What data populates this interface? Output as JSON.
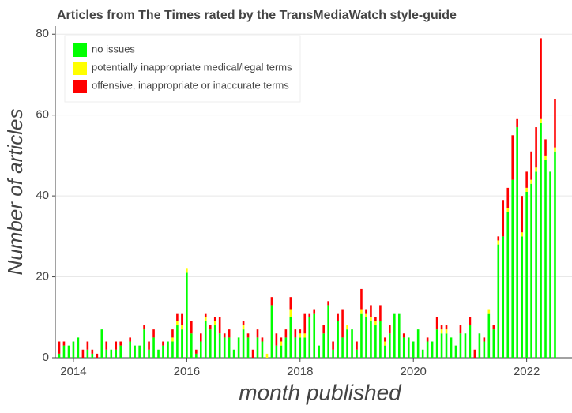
{
  "chart_data": {
    "type": "bar",
    "stacked": true,
    "title": "Articles from The Times rated by the TransMediaWatch style-guide",
    "x_label": "month published",
    "y_label": "Number of articles",
    "x": [
      2013.75,
      2013.833,
      2013.917,
      2014.0,
      2014.083,
      2014.167,
      2014.25,
      2014.333,
      2014.417,
      2014.5,
      2014.583,
      2014.667,
      2014.75,
      2014.833,
      2014.917,
      2015.0,
      2015.083,
      2015.167,
      2015.25,
      2015.333,
      2015.417,
      2015.5,
      2015.583,
      2015.667,
      2015.75,
      2015.833,
      2015.917,
      2016.0,
      2016.083,
      2016.167,
      2016.25,
      2016.333,
      2016.417,
      2016.5,
      2016.583,
      2016.667,
      2016.75,
      2016.833,
      2016.917,
      2017.0,
      2017.083,
      2017.167,
      2017.25,
      2017.333,
      2017.417,
      2017.5,
      2017.583,
      2017.667,
      2017.75,
      2017.833,
      2017.917,
      2018.0,
      2018.083,
      2018.167,
      2018.25,
      2018.333,
      2018.417,
      2018.5,
      2018.583,
      2018.667,
      2018.75,
      2018.833,
      2018.917,
      2019.0,
      2019.083,
      2019.167,
      2019.25,
      2019.333,
      2019.417,
      2019.5,
      2019.583,
      2019.667,
      2019.75,
      2019.833,
      2019.917,
      2020.0,
      2020.083,
      2020.167,
      2020.25,
      2020.333,
      2020.417,
      2020.5,
      2020.583,
      2020.667,
      2020.75,
      2020.833,
      2020.917,
      2021.0,
      2021.083,
      2021.167,
      2021.25,
      2021.333,
      2021.417,
      2021.5,
      2021.583,
      2021.667,
      2021.75,
      2021.833,
      2021.917,
      2022.0,
      2022.083,
      2022.167,
      2022.25,
      2022.333,
      2022.417,
      2022.5
    ],
    "series": [
      {
        "name": "no issues",
        "color": "#00ff00",
        "values": [
          1,
          3,
          3,
          4,
          5,
          0,
          2,
          1,
          0,
          7,
          2,
          2,
          2,
          3,
          0,
          4,
          3,
          3,
          7,
          2,
          5,
          2,
          3,
          4,
          4,
          8,
          7,
          21,
          6,
          1,
          4,
          9,
          7,
          8,
          6,
          5,
          5,
          2,
          5,
          7,
          5,
          0,
          5,
          4,
          0,
          13,
          3,
          3,
          5,
          10,
          5,
          5,
          5,
          10,
          11,
          3,
          6,
          13,
          2,
          9,
          5,
          7,
          7,
          2,
          11,
          10,
          9,
          8,
          9,
          3,
          6,
          11,
          11,
          5,
          5,
          4,
          7,
          2,
          4,
          4,
          7,
          6,
          6,
          5,
          3,
          6,
          6,
          8,
          0,
          6,
          4,
          11,
          7,
          28,
          30,
          36,
          44,
          57,
          30,
          41,
          43,
          46,
          58,
          49,
          46,
          51
        ]
      },
      {
        "name": "potentially inappropriate medical/legal terms",
        "color": "#ffff00",
        "values": [
          0,
          0,
          0,
          0,
          0,
          0,
          0,
          0,
          0,
          0,
          0,
          0,
          0,
          0,
          0,
          0,
          0,
          0,
          0,
          0,
          0,
          0,
          0,
          0,
          1,
          1,
          1,
          1,
          0,
          0,
          0,
          1,
          0,
          1,
          0,
          0,
          0,
          0,
          0,
          1,
          0,
          0,
          0,
          0,
          1,
          0,
          0,
          1,
          0,
          2,
          0,
          1,
          1,
          0,
          0,
          0,
          0,
          0,
          0,
          0,
          0,
          1,
          0,
          0,
          1,
          1,
          1,
          1,
          0,
          1,
          0,
          0,
          0,
          0,
          0,
          0,
          0,
          0,
          0,
          0,
          0,
          1,
          1,
          0,
          0,
          0,
          0,
          0,
          0,
          0,
          0,
          1,
          0,
          1,
          0,
          1,
          0,
          0,
          1,
          1,
          1,
          1,
          1,
          1,
          0,
          1
        ]
      },
      {
        "name": "offensive, inappropriate or inaccurate terms",
        "color": "#ff0000",
        "values": [
          3,
          1,
          0,
          0,
          0,
          2,
          2,
          1,
          1,
          0,
          2,
          0,
          2,
          1,
          0,
          1,
          0,
          0,
          1,
          2,
          2,
          0,
          1,
          0,
          2,
          2,
          3,
          0,
          3,
          1,
          2,
          1,
          1,
          1,
          4,
          1,
          2,
          0,
          0,
          1,
          1,
          2,
          2,
          1,
          0,
          2,
          3,
          1,
          2,
          3,
          2,
          1,
          5,
          1,
          1,
          0,
          2,
          1,
          2,
          2,
          7,
          0,
          0,
          2,
          5,
          1,
          3,
          1,
          4,
          1,
          2,
          0,
          0,
          1,
          0,
          0,
          0,
          0,
          1,
          0,
          3,
          1,
          1,
          0,
          0,
          2,
          0,
          2,
          2,
          0,
          1,
          0,
          1,
          1,
          9,
          5,
          11,
          2,
          9,
          4,
          7,
          10,
          20,
          4,
          0,
          12
        ]
      }
    ],
    "xlim": [
      2013.68,
      2022.8
    ],
    "xticks": [
      2014,
      2016,
      2018,
      2020,
      2022
    ],
    "ylim": [
      0,
      82
    ],
    "yticks": [
      0,
      20,
      40,
      60,
      80
    ],
    "grid": true,
    "legend": "upper left"
  }
}
